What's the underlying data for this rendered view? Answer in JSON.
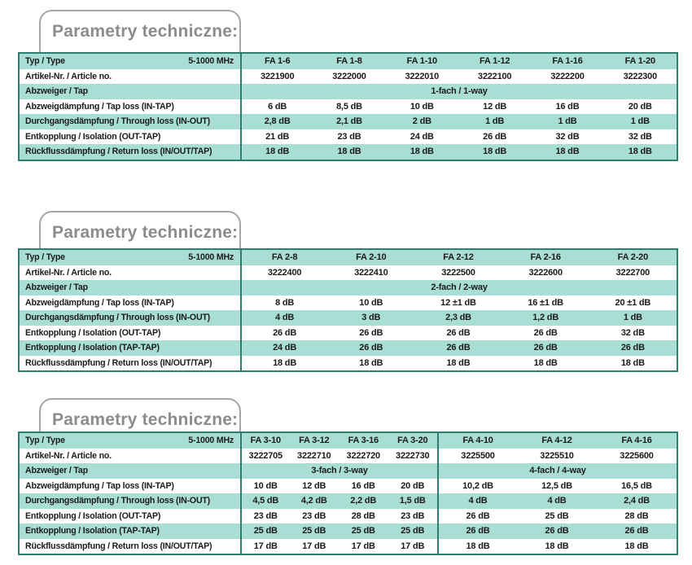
{
  "colors": {
    "row_mint": "#a9ded4",
    "table_border": "#2e7d70",
    "title_text": "#8c8c8c",
    "title_border": "#a6a6a6",
    "text": "#1b1b1b"
  },
  "sections": [
    {
      "title": "Parametry techniczne:",
      "table": {
        "type_label": "Typ / Type",
        "freq": "5-1000 MHz",
        "columns": [
          "FA 1-6",
          "FA 1-8",
          "FA 1-10",
          "FA 1-12",
          "FA 1-16",
          "FA 1-20"
        ],
        "article_label": "Artikel-Nr. / Article no.",
        "articles": [
          "3221900",
          "3222000",
          "3222010",
          "3222100",
          "3222200",
          "3222300"
        ],
        "tap_label": "Abzweiger / Tap",
        "tap_groups": [
          "1-fach / 1-way"
        ],
        "rows": [
          {
            "label": "Abzweigdämpfung / Tap loss (IN-TAP)",
            "values": [
              "6 dB",
              "8,5 dB",
              "10 dB",
              "12 dB",
              "16 dB",
              "20 dB"
            ]
          },
          {
            "label": "Durchgangsdämpfung / Through loss (IN-OUT)",
            "values": [
              "2,8 dB",
              "2,1 dB",
              "2 dB",
              "1 dB",
              "1 dB",
              "1 dB"
            ]
          },
          {
            "label": "Entkopplung / Isolation (OUT-TAP)",
            "values": [
              "21 dB",
              "23 dB",
              "24 dB",
              "26 dB",
              "32 dB",
              "32 dB"
            ]
          },
          {
            "label": "Rückflussdämpfung / Return loss (IN/OUT/TAP)",
            "values": [
              "18 dB",
              "18 dB",
              "18 dB",
              "18 dB",
              "18 dB",
              "18 dB"
            ]
          }
        ]
      }
    },
    {
      "title": "Parametry techniczne:",
      "table": {
        "type_label": "Typ / Type",
        "freq": "5-1000 MHz",
        "columns": [
          "FA 2-8",
          "FA 2-10",
          "FA 2-12",
          "FA 2-16",
          "FA 2-20"
        ],
        "article_label": "Artikel-Nr. / Article no.",
        "articles": [
          "3222400",
          "3222410",
          "3222500",
          "3222600",
          "3222700"
        ],
        "tap_label": "Abzweiger / Tap",
        "tap_groups": [
          "2-fach / 2-way"
        ],
        "rows": [
          {
            "label": "Abzweigdämpfung / Tap loss (IN-TAP)",
            "values": [
              "8 dB",
              "10 dB",
              "12 ±1 dB",
              "16 ±1 dB",
              "20 ±1 dB"
            ]
          },
          {
            "label": "Durchgangsdämpfung / Through loss (IN-OUT)",
            "values": [
              "4 dB",
              "3 dB",
              "2,3 dB",
              "1,2 dB",
              "1 dB"
            ]
          },
          {
            "label": "Entkopplung / Isolation (OUT-TAP)",
            "values": [
              "26 dB",
              "26 dB",
              "26 dB",
              "26 dB",
              "32 dB"
            ]
          },
          {
            "label": "Entkopplung / Isolation (TAP-TAP)",
            "values": [
              "24 dB",
              "26 dB",
              "26 dB",
              "26 dB",
              "26 dB"
            ]
          },
          {
            "label": "Rückflussdämpfung / Return loss (IN/OUT/TAP)",
            "values": [
              "18 dB",
              "18 dB",
              "18 dB",
              "18 dB",
              "18 dB"
            ]
          }
        ]
      }
    },
    {
      "title": "Parametry techniczne:",
      "table": {
        "type_label": "Typ / Type",
        "freq": "5-1000 MHz",
        "columns": [
          "FA 3-10",
          "FA 3-12",
          "FA 3-16",
          "FA 3-20",
          "FA 4-10",
          "FA 4-12",
          "FA 4-16"
        ],
        "article_label": "Artikel-Nr. / Article no.",
        "articles": [
          "3222705",
          "3222710",
          "3222720",
          "3222730",
          "3225500",
          "3225510",
          "3225600"
        ],
        "tap_label": "Abzweiger / Tap",
        "tap_groups": [
          "3-fach / 3-way",
          "4-fach / 4-way"
        ],
        "rows": [
          {
            "label": "Abzweigdämpfung / Tap loss (IN-TAP)",
            "values": [
              "10 dB",
              "12 dB",
              "16 dB",
              "20 dB",
              "10,2 dB",
              "12,5 dB",
              "16,5 dB"
            ]
          },
          {
            "label": "Durchgangsdämpfung / Through loss (IN-OUT)",
            "values": [
              "4,5 dB",
              "4,2 dB",
              "2,2 dB",
              "1,5 dB",
              "4 dB",
              "4 dB",
              "2,4 dB"
            ]
          },
          {
            "label": "Entkopplung / Isolation (OUT-TAP)",
            "values": [
              "23 dB",
              "23 dB",
              "28 dB",
              "23 dB",
              "26 dB",
              "25 dB",
              "28 dB"
            ]
          },
          {
            "label": "Entkopplung / Isolation (TAP-TAP)",
            "values": [
              "25 dB",
              "25 dB",
              "25 dB",
              "25 dB",
              "26 dB",
              "26 dB",
              "26 dB"
            ]
          },
          {
            "label": "Rückflussdämpfung / Return loss (IN/OUT/TAP)",
            "values": [
              "17 dB",
              "17 dB",
              "17 dB",
              "17 dB",
              "18 dB",
              "18 dB",
              "18 dB"
            ]
          }
        ]
      }
    }
  ]
}
